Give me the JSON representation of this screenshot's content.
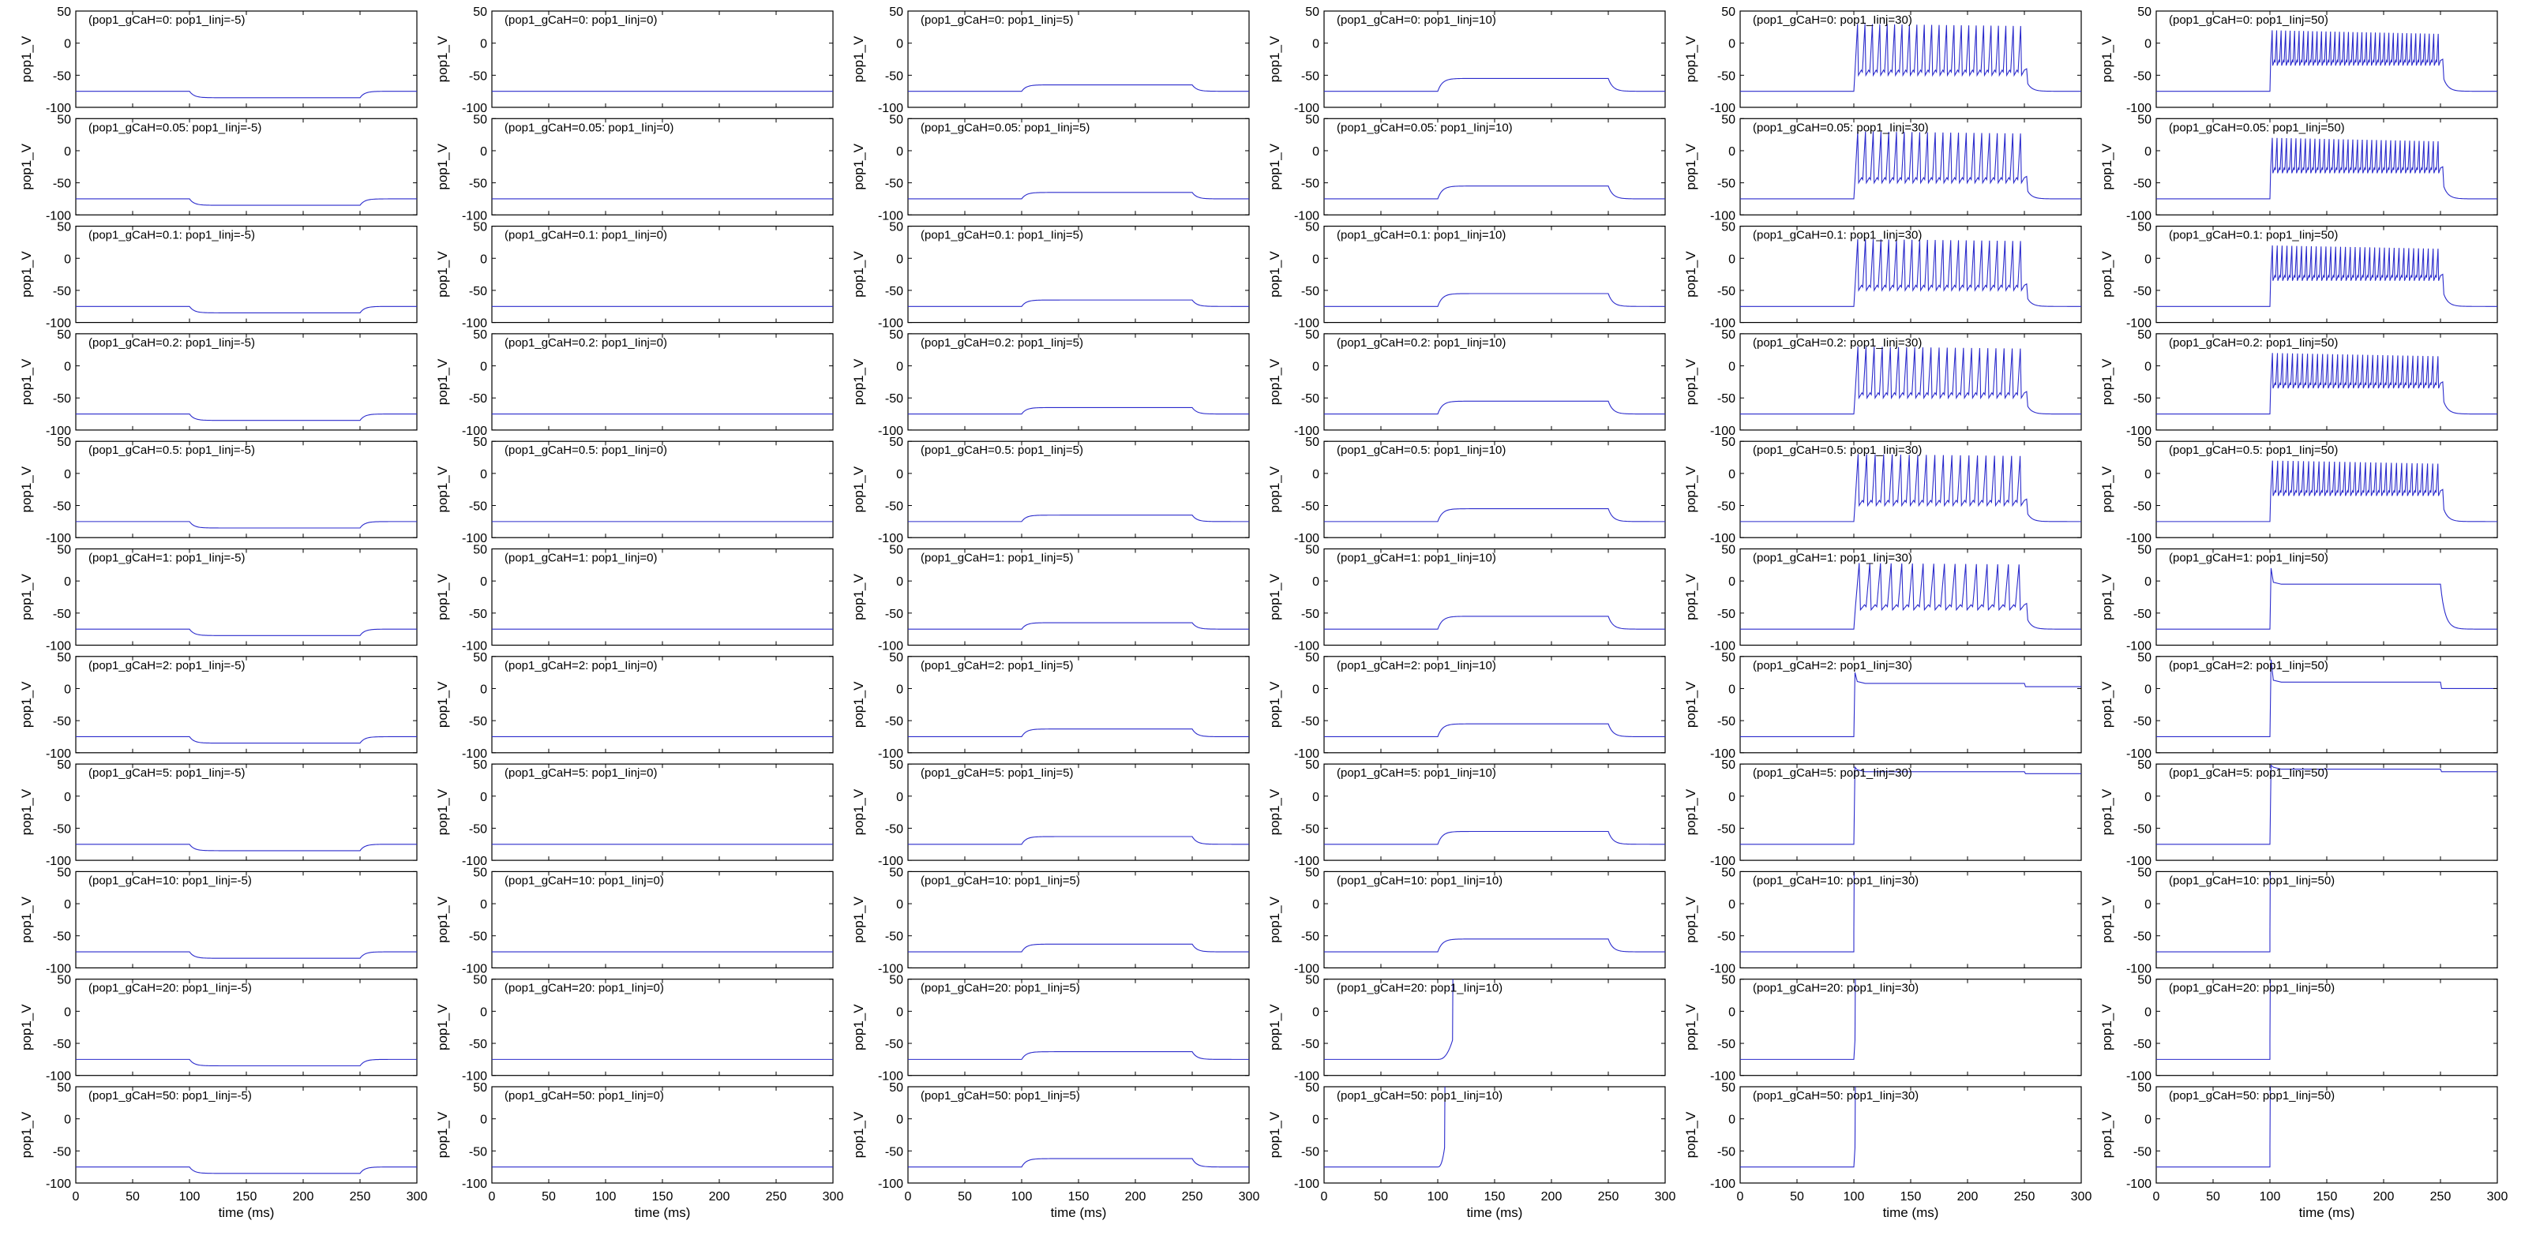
{
  "figure": {
    "ylabel": "pop1_V",
    "xlabel": "time (ms)",
    "rows_gCaH": [
      "0",
      "0.05",
      "0.1",
      "0.2",
      "0.5",
      "1",
      "2",
      "5",
      "10",
      "20",
      "50"
    ],
    "cols_Iinj": [
      "-5",
      "0",
      "5",
      "10",
      "30",
      "50"
    ],
    "line_color": "#2b2bcc"
  },
  "chart_data": {
    "type": "line",
    "layout": "grid 11 rows x 6 columns of small-multiple plots",
    "title_format": "(pop1_gCaH={gCaH}: pop1_Iinj={Iinj})",
    "xlabel": "time (ms)",
    "ylabel": "pop1_V",
    "xlim": [
      0,
      300
    ],
    "ylim": [
      -100,
      50
    ],
    "xticks": [
      0,
      50,
      100,
      150,
      200,
      250,
      300
    ],
    "yticks": [
      -100,
      -50,
      0,
      50
    ],
    "grid": false,
    "stimulus_window_ms": [
      100,
      250
    ],
    "baseline_mV": -75,
    "panels": [
      {
        "gCaH": "0",
        "Iinj": "-5",
        "kind": "step",
        "level": -85
      },
      {
        "gCaH": "0",
        "Iinj": "0",
        "kind": "flat",
        "level": -75
      },
      {
        "gCaH": "0",
        "Iinj": "5",
        "kind": "step",
        "level": -65
      },
      {
        "gCaH": "0",
        "Iinj": "10",
        "kind": "step",
        "level": -55
      },
      {
        "gCaH": "0",
        "Iinj": "30",
        "kind": "spikes",
        "spikes": 23,
        "spike_min": -50,
        "spike_max": 30
      },
      {
        "gCaH": "0",
        "Iinj": "50",
        "kind": "spikes",
        "spikes": 38,
        "spike_min": -35,
        "spike_max": 20
      },
      {
        "gCaH": "0.05",
        "Iinj": "-5",
        "kind": "step",
        "level": -85
      },
      {
        "gCaH": "0.05",
        "Iinj": "0",
        "kind": "flat",
        "level": -75
      },
      {
        "gCaH": "0.05",
        "Iinj": "5",
        "kind": "step",
        "level": -65
      },
      {
        "gCaH": "0.05",
        "Iinj": "10",
        "kind": "step",
        "level": -55
      },
      {
        "gCaH": "0.05",
        "Iinj": "30",
        "kind": "spikes",
        "spikes": 22,
        "spike_min": -50,
        "spike_max": 30
      },
      {
        "gCaH": "0.05",
        "Iinj": "50",
        "kind": "spikes",
        "spikes": 36,
        "spike_min": -35,
        "spike_max": 20
      },
      {
        "gCaH": "0.1",
        "Iinj": "-5",
        "kind": "step",
        "level": -85
      },
      {
        "gCaH": "0.1",
        "Iinj": "0",
        "kind": "flat",
        "level": -75
      },
      {
        "gCaH": "0.1",
        "Iinj": "5",
        "kind": "step",
        "level": -65
      },
      {
        "gCaH": "0.1",
        "Iinj": "10",
        "kind": "step",
        "level": -55
      },
      {
        "gCaH": "0.1",
        "Iinj": "30",
        "kind": "spikes",
        "spikes": 22,
        "spike_min": -50,
        "spike_max": 30
      },
      {
        "gCaH": "0.1",
        "Iinj": "50",
        "kind": "spikes",
        "spikes": 35,
        "spike_min": -35,
        "spike_max": 20
      },
      {
        "gCaH": "0.2",
        "Iinj": "-5",
        "kind": "step",
        "level": -85
      },
      {
        "gCaH": "0.2",
        "Iinj": "0",
        "kind": "flat",
        "level": -75
      },
      {
        "gCaH": "0.2",
        "Iinj": "5",
        "kind": "step",
        "level": -65
      },
      {
        "gCaH": "0.2",
        "Iinj": "10",
        "kind": "step",
        "level": -55
      },
      {
        "gCaH": "0.2",
        "Iinj": "30",
        "kind": "spikes",
        "spikes": 21,
        "spike_min": -50,
        "spike_max": 30
      },
      {
        "gCaH": "0.2",
        "Iinj": "50",
        "kind": "spikes",
        "spikes": 34,
        "spike_min": -35,
        "spike_max": 20
      },
      {
        "gCaH": "0.5",
        "Iinj": "-5",
        "kind": "step",
        "level": -85
      },
      {
        "gCaH": "0.5",
        "Iinj": "0",
        "kind": "flat",
        "level": -75
      },
      {
        "gCaH": "0.5",
        "Iinj": "5",
        "kind": "step",
        "level": -65
      },
      {
        "gCaH": "0.5",
        "Iinj": "10",
        "kind": "step",
        "level": -55
      },
      {
        "gCaH": "0.5",
        "Iinj": "30",
        "kind": "spikes",
        "spikes": 20,
        "spike_min": -50,
        "spike_max": 30
      },
      {
        "gCaH": "0.5",
        "Iinj": "50",
        "kind": "spikes",
        "spikes": 33,
        "spike_min": -35,
        "spike_max": 20
      },
      {
        "gCaH": "1",
        "Iinj": "-5",
        "kind": "step",
        "level": -85
      },
      {
        "gCaH": "1",
        "Iinj": "0",
        "kind": "flat",
        "level": -75
      },
      {
        "gCaH": "1",
        "Iinj": "5",
        "kind": "step",
        "level": -65
      },
      {
        "gCaH": "1",
        "Iinj": "10",
        "kind": "step",
        "level": -55
      },
      {
        "gCaH": "1",
        "Iinj": "30",
        "kind": "spikes",
        "spikes": 16,
        "spike_min": -45,
        "spike_max": 28
      },
      {
        "gCaH": "1",
        "Iinj": "50",
        "kind": "plateau",
        "level": -5,
        "peak": 20
      },
      {
        "gCaH": "2",
        "Iinj": "-5",
        "kind": "step",
        "level": -85
      },
      {
        "gCaH": "2",
        "Iinj": "0",
        "kind": "flat",
        "level": -75
      },
      {
        "gCaH": "2",
        "Iinj": "5",
        "kind": "step",
        "level": -63
      },
      {
        "gCaH": "2",
        "Iinj": "10",
        "kind": "step",
        "level": -55
      },
      {
        "gCaH": "2",
        "Iinj": "30",
        "kind": "plateau",
        "level": 8,
        "after": 3,
        "peak": 25
      },
      {
        "gCaH": "2",
        "Iinj": "50",
        "kind": "plateau",
        "level": 10,
        "after": 0,
        "peak": 45
      },
      {
        "gCaH": "5",
        "Iinj": "-5",
        "kind": "step",
        "level": -85
      },
      {
        "gCaH": "5",
        "Iinj": "0",
        "kind": "flat",
        "level": -75
      },
      {
        "gCaH": "5",
        "Iinj": "5",
        "kind": "step",
        "level": -63
      },
      {
        "gCaH": "5",
        "Iinj": "10",
        "kind": "step",
        "level": -55
      },
      {
        "gCaH": "5",
        "Iinj": "30",
        "kind": "plateau",
        "level": 38,
        "after": 35,
        "peak": 45
      },
      {
        "gCaH": "5",
        "Iinj": "50",
        "kind": "plateau",
        "level": 42,
        "after": 38,
        "peak": 48
      },
      {
        "gCaH": "10",
        "Iinj": "-5",
        "kind": "step",
        "level": -85
      },
      {
        "gCaH": "10",
        "Iinj": "0",
        "kind": "flat",
        "level": -75
      },
      {
        "gCaH": "10",
        "Iinj": "5",
        "kind": "step",
        "level": -63
      },
      {
        "gCaH": "10",
        "Iinj": "10",
        "kind": "step",
        "level": -55
      },
      {
        "gCaH": "10",
        "Iinj": "30",
        "kind": "runaway",
        "onset": 100
      },
      {
        "gCaH": "10",
        "Iinj": "50",
        "kind": "runaway",
        "onset": 100
      },
      {
        "gCaH": "20",
        "Iinj": "-5",
        "kind": "step",
        "level": -85
      },
      {
        "gCaH": "20",
        "Iinj": "0",
        "kind": "flat",
        "level": -75
      },
      {
        "gCaH": "20",
        "Iinj": "5",
        "kind": "step",
        "level": -63
      },
      {
        "gCaH": "20",
        "Iinj": "10",
        "kind": "runaway",
        "onset": 113
      },
      {
        "gCaH": "20",
        "Iinj": "30",
        "kind": "runaway",
        "onset": 101
      },
      {
        "gCaH": "20",
        "Iinj": "50",
        "kind": "runaway",
        "onset": 100
      },
      {
        "gCaH": "50",
        "Iinj": "-5",
        "kind": "step",
        "level": -85
      },
      {
        "gCaH": "50",
        "Iinj": "0",
        "kind": "flat",
        "level": -75
      },
      {
        "gCaH": "50",
        "Iinj": "5",
        "kind": "step",
        "level": -62
      },
      {
        "gCaH": "50",
        "Iinj": "10",
        "kind": "runaway",
        "onset": 106
      },
      {
        "gCaH": "50",
        "Iinj": "30",
        "kind": "runaway",
        "onset": 101
      },
      {
        "gCaH": "50",
        "Iinj": "50",
        "kind": "runaway",
        "onset": 100
      }
    ]
  }
}
